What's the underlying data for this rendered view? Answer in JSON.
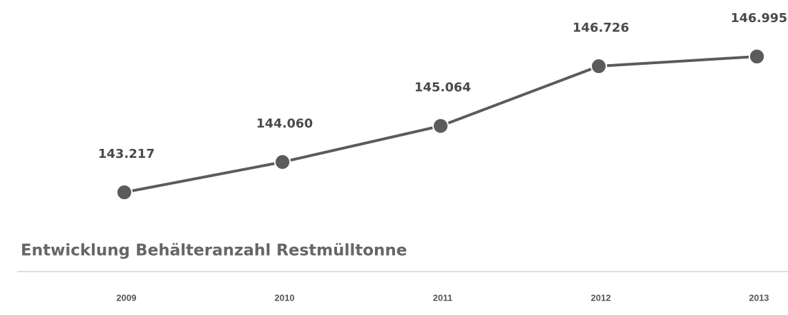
{
  "chart_data": {
    "type": "line",
    "title": "Entwicklung Behälteranzahl Restmülltonne",
    "categories": [
      "2009",
      "2010",
      "2011",
      "2012",
      "2013"
    ],
    "values": [
      143217,
      144060,
      145064,
      146726,
      146995
    ],
    "value_labels": [
      "143.217",
      "144.060",
      "145.064",
      "146.726",
      "146.995"
    ],
    "color": "#5b5b5d"
  }
}
